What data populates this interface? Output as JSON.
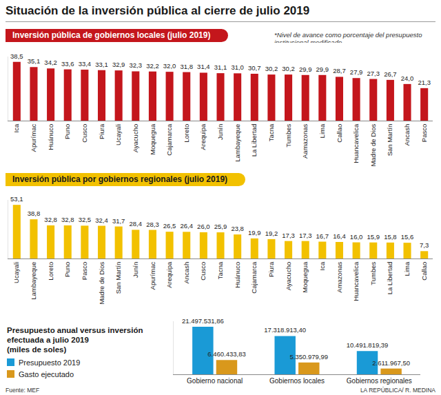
{
  "title": "Situación de la inversión pública al cierre de julio 2019",
  "source": "Fuente: MEF",
  "credit": "LA REPÚBLICA/ R. MEDINA",
  "chart_data": [
    {
      "type": "bar",
      "title": "Inversión pública de gobiernos locales (julio 2019)",
      "note": "*Nivel de avance como porcentaje del presupuesto institucional modificado",
      "categories": [
        "Ica",
        "Apurímac",
        "Huánuco",
        "Puno",
        "Cusco",
        "Piura",
        "Ucayali",
        "Ayacucho",
        "Moquegua",
        "Cajamarca",
        "Loreto",
        "Arequipa",
        "Junín",
        "Lambayeque",
        "La Libertad",
        "Tacna",
        "Tumbes",
        "Aamazonas",
        "Lima",
        "Callao",
        "Huancavelica",
        "Madre de Dios",
        "San Martín",
        "Ancash",
        "Pasco"
      ],
      "values": [
        38.5,
        35.1,
        34.2,
        33.6,
        33.4,
        33.1,
        32.9,
        32.3,
        32.2,
        32.0,
        31.8,
        31.4,
        31.1,
        31.0,
        30.7,
        30.2,
        30.2,
        29.9,
        29.9,
        28.7,
        27.9,
        27.3,
        26.7,
        24.0,
        21.3
      ],
      "value_labels": [
        "38,5",
        "35,1",
        "34,2",
        "33,6",
        "33,4",
        "33,1",
        "32,9",
        "32,3",
        "32,2",
        "32,0",
        "31,8",
        "31,4",
        "31,1",
        "31,0",
        "30,7",
        "30,2",
        "30,2",
        "29,9",
        "29,9",
        "28,7",
        "27,9",
        "27,3",
        "26,7",
        "24,0",
        "21,3"
      ],
      "color": "#c4161c",
      "ylim": [
        0,
        42
      ],
      "grid": false,
      "data_labels": true,
      "tick_labels": "x"
    },
    {
      "type": "bar",
      "title": "Inversión pública por gobiernos regionales (julio 2019)",
      "note": "*Nivel de avance como porcentaje del presupuesto institucional modificado",
      "categories": [
        "Ucayali",
        "Lambayeque",
        "Loreto",
        "Puno",
        "Pasco",
        "Madre de Dios",
        "San Martín",
        "Junín",
        "Apurímac",
        "Arequipa",
        "Ancash",
        "Cusco",
        "Tacna",
        "Huánuco",
        "Cajamarca",
        "Piura",
        "Ayacucho",
        "Moquegua",
        "Ica",
        "Amazonas",
        "Huancavelica",
        "Tumbes",
        "La Libertad",
        "Lima",
        "Callao"
      ],
      "values": [
        53.1,
        38.8,
        32.8,
        32.8,
        32.5,
        32.4,
        31.7,
        28.4,
        28.3,
        26.5,
        26.4,
        26.0,
        25.9,
        23.8,
        19.9,
        19.2,
        17.3,
        17.3,
        16.7,
        16.4,
        16.0,
        15.9,
        15.8,
        15.6,
        7.3
      ],
      "value_labels": [
        "53,1",
        "38,8",
        "32,8",
        "32,8",
        "32,5",
        "32,4",
        "31,7",
        "28,4",
        "28,3",
        "26,5",
        "26,4",
        "26,0",
        "25,9",
        "23,8",
        "19,9",
        "19,2",
        "17,3",
        "17,3",
        "16,7",
        "16,4",
        "16,0",
        "15,9",
        "15,8",
        "15,6",
        "7,3"
      ],
      "color": "#f2c100",
      "ylim": [
        0,
        58
      ],
      "grid": false,
      "data_labels": true,
      "tick_labels": "x"
    },
    {
      "type": "bar",
      "title": "Presupuesto anual versus inversión efectuada a julio 2019",
      "subtitle": "(miles de soles)",
      "categories": [
        "Gobierno nacional",
        "Gobiernos locales",
        "Gobiernos regionales"
      ],
      "series": [
        {
          "name": "Presupuesto 2019",
          "color": "#1a9ad6",
          "values": [
            21497531.86,
            17318913.4,
            10491819.39
          ],
          "value_labels": [
            "21.497.531,86",
            "17.318.913,40",
            "10.491.819,39"
          ]
        },
        {
          "name": "Gasto ejecutado",
          "color": "#d9981c",
          "values": [
            6460433.83,
            5350979.99,
            2611967.5
          ],
          "value_labels": [
            "6.460.433,83",
            "5.350.979,99",
            "2.611.967,50"
          ]
        }
      ],
      "ylim": [
        0,
        24000000
      ],
      "grid": false,
      "data_labels": true,
      "tick_labels": "x"
    }
  ]
}
